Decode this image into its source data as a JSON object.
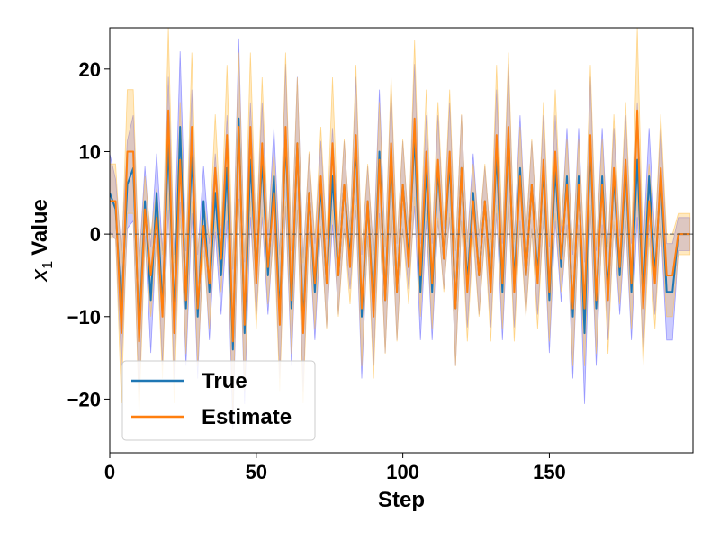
{
  "chart_data": {
    "type": "line",
    "title": "",
    "xlabel": "Step",
    "ylabel_var": "x",
    "ylabel_sub": "1",
    "ylabel_rest": "Value",
    "xlim": [
      0,
      199
    ],
    "ylim": [
      -26.5,
      25
    ],
    "xticks": [
      0,
      50,
      100,
      150
    ],
    "yticks": [
      -20,
      -10,
      0,
      10,
      20
    ],
    "grid": false,
    "legend_position": "lower-left",
    "zero_line": true,
    "colors": {
      "true": "#1f77b4",
      "estimate": "#ff7f0e",
      "true_band": "#6b6bff",
      "estimate_band": "#ffc04d",
      "zero_line": "#555555"
    },
    "x": [
      0,
      2,
      4,
      6,
      8,
      10,
      12,
      14,
      16,
      18,
      20,
      22,
      24,
      26,
      28,
      30,
      32,
      34,
      36,
      38,
      40,
      42,
      44,
      46,
      48,
      50,
      52,
      54,
      56,
      58,
      60,
      62,
      64,
      66,
      68,
      70,
      72,
      74,
      76,
      78,
      80,
      82,
      84,
      86,
      88,
      90,
      92,
      94,
      96,
      98,
      100,
      102,
      104,
      106,
      108,
      110,
      112,
      114,
      116,
      118,
      120,
      122,
      124,
      126,
      128,
      130,
      132,
      134,
      136,
      138,
      140,
      142,
      144,
      146,
      148,
      150,
      152,
      154,
      156,
      158,
      160,
      162,
      164,
      166,
      168,
      170,
      172,
      174,
      176,
      178,
      180,
      182,
      184,
      186,
      188,
      190,
      192,
      194,
      196,
      198
    ],
    "series": [
      {
        "name": "True",
        "values": [
          5,
          3,
          -9,
          6,
          8,
          -12,
          4,
          -8,
          5,
          -9,
          11,
          -10,
          13,
          -9,
          10,
          -10,
          4,
          -7,
          5,
          -5,
          8,
          -14,
          14,
          -12,
          9,
          -5,
          9,
          -5,
          7,
          -10,
          12,
          -9,
          11,
          -11,
          5,
          -7,
          6,
          -6,
          7,
          -5,
          6,
          -3,
          11,
          -10,
          4,
          -9,
          10,
          -8,
          10,
          -7,
          6,
          -3,
          12,
          -7,
          8,
          -7,
          8,
          -3,
          9,
          -9,
          8,
          -6,
          5,
          -5,
          4,
          -6,
          10,
          -7,
          12,
          -6,
          8,
          -5,
          6,
          -5,
          8,
          -8,
          8,
          -4,
          7,
          -10,
          7,
          -12,
          11,
          -9,
          7,
          -7,
          7,
          -5,
          8,
          -7,
          9,
          -8,
          7,
          -5,
          7,
          -7,
          -7,
          0,
          0,
          0
        ]
      },
      {
        "name": "Estimate",
        "values": [
          4,
          4,
          -12,
          10,
          10,
          -13,
          3,
          -5,
          2,
          -10,
          15,
          -12,
          9,
          -8,
          13,
          -9,
          1,
          -6,
          8,
          -3,
          12,
          -13,
          13,
          -11,
          13,
          -6,
          11,
          -4,
          5,
          -11,
          13,
          -8,
          11,
          -12,
          5,
          -6,
          7,
          -6,
          11,
          -5,
          6,
          -4,
          12,
          -9,
          4,
          -10,
          9,
          -8,
          11,
          -7,
          6,
          -4,
          14,
          -5,
          10,
          -6,
          9,
          -3,
          10,
          -9,
          8,
          -7,
          4,
          -5,
          4,
          -7,
          12,
          -6,
          13,
          -7,
          7,
          -5,
          6,
          -6,
          9,
          -7,
          10,
          -3,
          6,
          -9,
          6,
          -9,
          12,
          -8,
          6,
          -8,
          8,
          -4,
          9,
          -6,
          15,
          -9,
          4,
          -6,
          8,
          -5,
          -5,
          0,
          0,
          0
        ]
      }
    ],
    "legend": {
      "entries": [
        "True",
        "Estimate"
      ]
    }
  }
}
